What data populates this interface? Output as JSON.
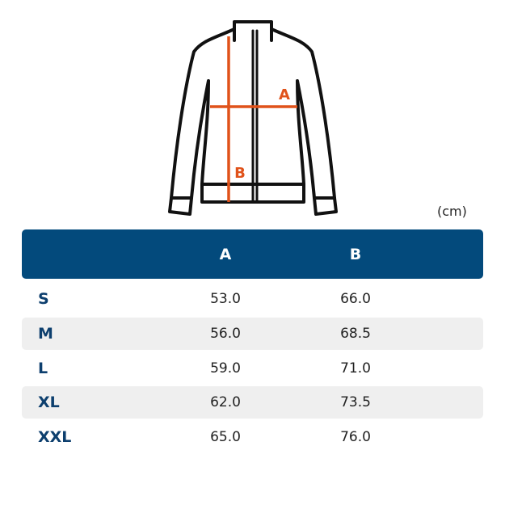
{
  "diagram": {
    "label_a": "A",
    "label_b": "B"
  },
  "unit": "(cm)",
  "table": {
    "columns": [
      "A",
      "B"
    ],
    "rows": [
      [
        "S",
        "53.0",
        "66.0"
      ],
      [
        "M",
        "56.0",
        "68.5"
      ],
      [
        "L",
        "59.0",
        "71.0"
      ],
      [
        "XL",
        "62.0",
        "73.5"
      ],
      [
        "XXL",
        "65.0",
        "76.0"
      ]
    ]
  }
}
